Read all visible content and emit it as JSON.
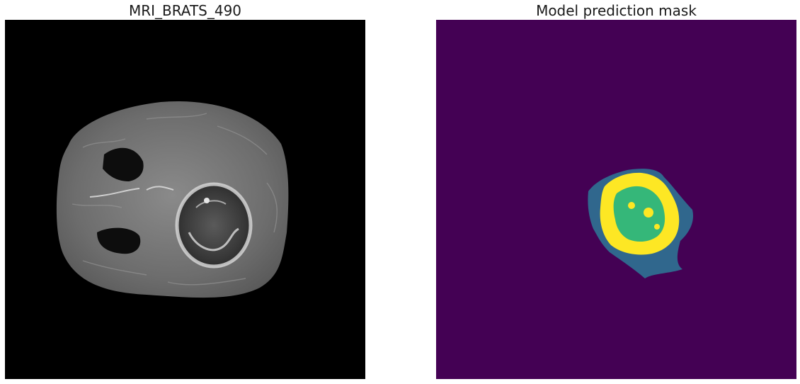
{
  "panels": {
    "left": {
      "title": "MRI_BRATS_490"
    },
    "right": {
      "title": "Model prediction mask"
    }
  },
  "colors": {
    "background_class": "#440154",
    "edema_class": "#30678d",
    "enhancing_class": "#fde724",
    "necrosis_class": "#35b779"
  }
}
